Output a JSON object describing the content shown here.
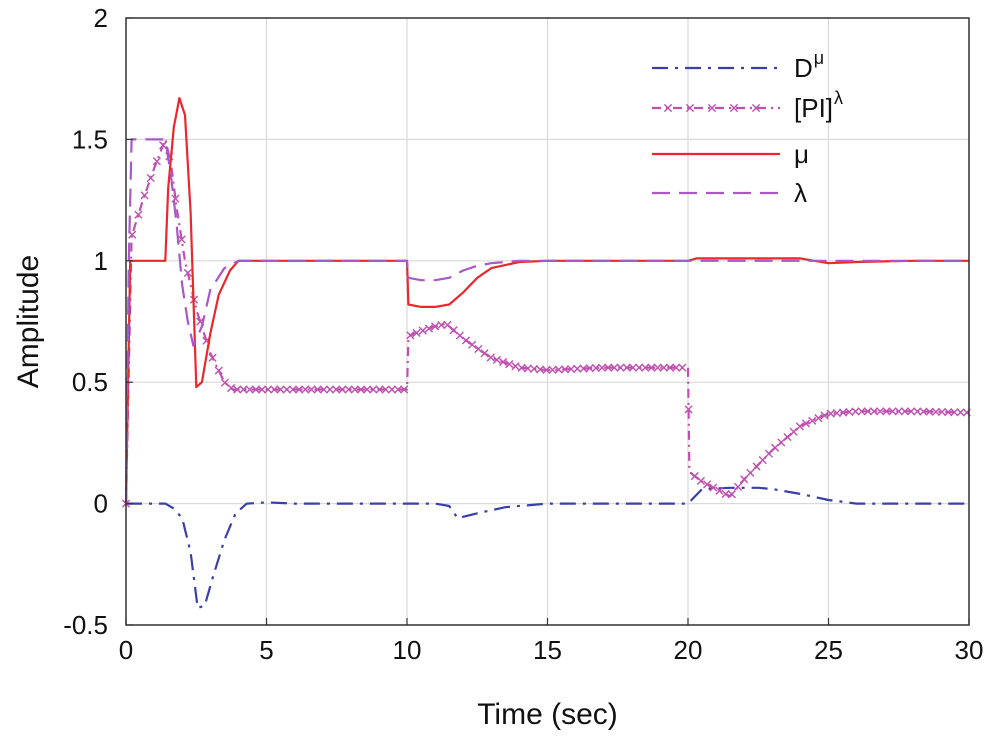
{
  "chart_data": {
    "type": "line",
    "title": "",
    "xlabel": "Time (sec)",
    "ylabel": "Amplitude",
    "xlim": [
      0,
      30
    ],
    "ylim": [
      -0.5,
      2
    ],
    "xticks": [
      0,
      5,
      10,
      15,
      20,
      25,
      30
    ],
    "yticks": [
      -0.5,
      0,
      0.5,
      1,
      1.5,
      2
    ],
    "xtick_labels": [
      "0",
      "5",
      "10",
      "15",
      "20",
      "25",
      "30"
    ],
    "ytick_labels": [
      "-0.5",
      "0",
      "0.5",
      "1",
      "1.5",
      "2"
    ],
    "grid": true,
    "legend_position": "top-right",
    "series": [
      {
        "name": "D^μ",
        "legend_base": "D",
        "legend_sup": "μ",
        "color": "#3b3fa8",
        "style": "dashdot",
        "x": [
          0,
          1.4,
          1.7,
          2.0,
          2.3,
          2.55,
          2.8,
          3.1,
          3.5,
          3.9,
          4.3,
          5.0,
          6,
          8,
          10.0,
          11.0,
          11.5,
          11.8,
          12.5,
          13.5,
          15,
          18,
          20.0,
          20.5,
          21.5,
          22.5,
          23.0,
          24,
          25,
          26,
          27,
          30
        ],
        "y": [
          0,
          0,
          -0.02,
          -0.06,
          -0.2,
          -0.43,
          -0.42,
          -0.3,
          -0.15,
          -0.04,
          0,
          0.005,
          0,
          0,
          0,
          0,
          -0.01,
          -0.06,
          -0.04,
          -0.015,
          0,
          0,
          0,
          0.06,
          0.065,
          0.065,
          0.06,
          0.04,
          0.015,
          0,
          0,
          0
        ]
      },
      {
        "name": "[PI]^λ",
        "legend_base": "[PI]",
        "legend_sup": "λ",
        "color": "#c050b0",
        "style": "dashdot-x",
        "x": [
          0,
          0.2,
          0.6,
          1.0,
          1.4,
          1.6,
          1.8,
          2.1,
          2.5,
          3.0,
          3.5,
          3.8,
          4.5,
          6,
          8,
          10.0,
          10.05,
          10.5,
          11.0,
          11.4,
          12.0,
          13.0,
          14.0,
          15.0,
          17,
          19,
          20.0,
          20.05,
          20.5,
          21.0,
          21.5,
          22.0,
          23.0,
          24.0,
          25.0,
          26.0,
          28,
          30
        ],
        "y": [
          0,
          1.1,
          1.25,
          1.38,
          1.5,
          1.4,
          1.22,
          1.0,
          0.8,
          0.62,
          0.5,
          0.47,
          0.47,
          0.47,
          0.47,
          0.47,
          0.69,
          0.71,
          0.73,
          0.74,
          0.68,
          0.6,
          0.56,
          0.55,
          0.56,
          0.56,
          0.56,
          0.13,
          0.09,
          0.06,
          0.03,
          0.1,
          0.22,
          0.32,
          0.37,
          0.38,
          0.38,
          0.375
        ]
      },
      {
        "name": "μ",
        "legend_base": "μ",
        "legend_sup": "",
        "color": "#e8282a",
        "style": "solid",
        "x": [
          0,
          0.15,
          0.4,
          1.0,
          1.4,
          1.5,
          1.7,
          1.9,
          2.1,
          2.3,
          2.5,
          2.7,
          3.0,
          3.3,
          3.7,
          4.0,
          6,
          8,
          10.0,
          10.05,
          10.5,
          11.0,
          11.5,
          12.0,
          12.5,
          13.0,
          14.0,
          15.0,
          18,
          20.0,
          20.3,
          22,
          24.0,
          25.0,
          26.0,
          28,
          30
        ],
        "y": [
          0,
          1.0,
          1.0,
          1.0,
          1.0,
          1.3,
          1.55,
          1.67,
          1.6,
          1.2,
          0.48,
          0.5,
          0.7,
          0.86,
          0.96,
          1.0,
          1.0,
          1.0,
          1.0,
          0.82,
          0.81,
          0.81,
          0.82,
          0.87,
          0.93,
          0.97,
          0.995,
          1.0,
          1.0,
          1.0,
          1.01,
          1.01,
          1.01,
          0.99,
          0.995,
          1.0,
          1.0
        ]
      },
      {
        "name": "λ",
        "legend_base": "λ",
        "legend_sup": "",
        "color": "#a858c8",
        "style": "dashed",
        "x": [
          0,
          0.1,
          0.2,
          1.0,
          1.4,
          1.6,
          1.8,
          2.0,
          2.2,
          2.4,
          2.7,
          3.0,
          3.5,
          4.0,
          6,
          8,
          10.0,
          10.05,
          10.5,
          11.0,
          11.5,
          12.0,
          12.5,
          13.0,
          14.0,
          15.0,
          18,
          20.0,
          22,
          24,
          26,
          28,
          30
        ],
        "y": [
          0,
          1.0,
          1.5,
          1.5,
          1.5,
          1.35,
          1.15,
          0.9,
          0.75,
          0.65,
          0.73,
          0.88,
          0.97,
          1.0,
          1.0,
          1.0,
          1.0,
          0.93,
          0.92,
          0.92,
          0.93,
          0.96,
          0.98,
          0.99,
          1.0,
          1.0,
          1.0,
          1.0,
          1.0,
          1.0,
          1.0,
          1.0,
          1.0
        ]
      }
    ]
  }
}
